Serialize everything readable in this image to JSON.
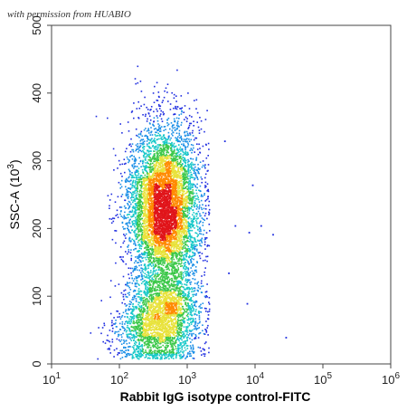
{
  "watermark": "with permission from HUABIO",
  "chart_data": {
    "type": "scatter",
    "style": "flow-cytometry density dot plot",
    "xscale": "log",
    "yscale": "linear",
    "xlim": [
      10,
      1000000
    ],
    "ylim": [
      0,
      500
    ],
    "xlabel": "Rabbit IgG isotype control-FITC",
    "ylabel_main": "SSC-A",
    "ylabel_unit_base": "10",
    "ylabel_unit_exp": "3",
    "xticks": [
      {
        "value": 10,
        "base": "10",
        "exp": "1"
      },
      {
        "value": 100,
        "base": "10",
        "exp": "2"
      },
      {
        "value": 1000,
        "base": "10",
        "exp": "3"
      },
      {
        "value": 10000,
        "base": "10",
        "exp": "4"
      },
      {
        "value": 100000,
        "base": "10",
        "exp": "5"
      },
      {
        "value": 1000000,
        "base": "10",
        "exp": "6"
      }
    ],
    "yticks": [
      {
        "value": 0,
        "label": "0"
      },
      {
        "value": 100,
        "label": "100"
      },
      {
        "value": 200,
        "label": "200"
      },
      {
        "value": 300,
        "label": "300"
      },
      {
        "value": 400,
        "label": "400"
      },
      {
        "value": 500,
        "label": "500"
      }
    ],
    "grid": false,
    "density_colors": [
      "#1f2de0",
      "#1b8fe6",
      "#19c9c9",
      "#3cc84a",
      "#e8e23a",
      "#ff8a00",
      "#e0141a"
    ],
    "populations": [
      {
        "name": "main",
        "x_center": 450,
        "y_center": 230,
        "log_x_spread": 0.26,
        "y_spread": 62,
        "weight": 0.7
      },
      {
        "name": "low",
        "x_center": 350,
        "y_center": 45,
        "log_x_spread": 0.3,
        "y_spread": 26,
        "weight": 0.17
      },
      {
        "name": "mid",
        "x_center": 500,
        "y_center": 90,
        "log_x_spread": 0.25,
        "y_spread": 25,
        "weight": 0.13
      }
    ],
    "outliers": [
      {
        "x": 9000,
        "y": 265
      },
      {
        "x": 5000,
        "y": 205
      },
      {
        "x": 8000,
        "y": 195
      },
      {
        "x": 12000,
        "y": 205
      },
      {
        "x": 18000,
        "y": 192
      },
      {
        "x": 3500,
        "y": 330
      },
      {
        "x": 7500,
        "y": 90
      },
      {
        "x": 28000,
        "y": 40
      },
      {
        "x": 4000,
        "y": 135
      }
    ]
  }
}
